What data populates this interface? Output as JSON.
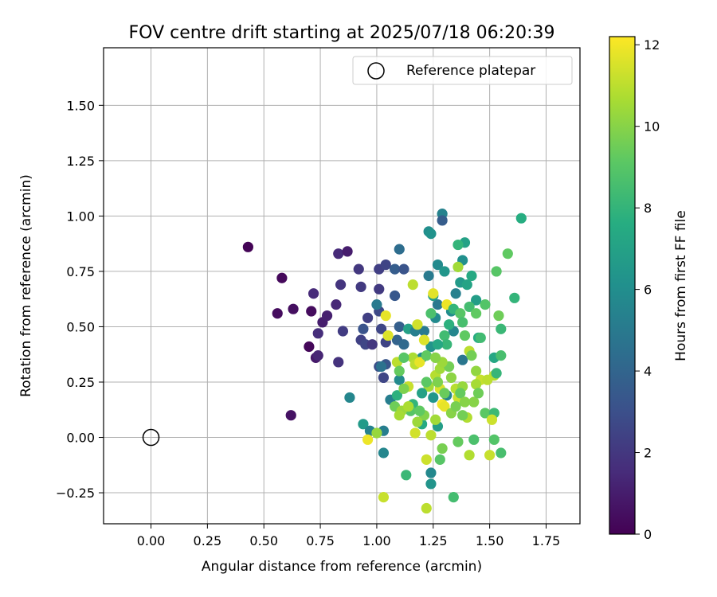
{
  "chart_data": {
    "type": "scatter",
    "title": "FOV centre drift starting at 2025/07/18 06:20:39",
    "xlabel": "Angular distance from reference (arcmin)",
    "ylabel": "Rotation from reference (arcmin)",
    "xlim": [
      -0.21,
      1.9
    ],
    "ylim": [
      -0.39,
      1.76
    ],
    "xticks": [
      "0.00",
      "0.25",
      "0.50",
      "0.75",
      "1.00",
      "1.25",
      "1.50",
      "1.75"
    ],
    "yticks": [
      "−0.25",
      "0.00",
      "0.25",
      "0.50",
      "0.75",
      "1.00",
      "1.25",
      "1.50"
    ],
    "grid": true,
    "legend": {
      "placement": "top-right",
      "entries": [
        "Reference platepar"
      ]
    },
    "reference_point": {
      "x": 0.0,
      "y": 0.0,
      "label": "Reference platepar"
    },
    "colorbar": {
      "label": "Hours from first FF file",
      "min": 0,
      "max": 12.2,
      "ticks": [
        "0",
        "2",
        "4",
        "6",
        "8",
        "10",
        "12"
      ],
      "colormap": "viridis"
    },
    "points": [
      {
        "x": 0.43,
        "y": 0.86,
        "c": 0.1
      },
      {
        "x": 0.58,
        "y": 0.72,
        "c": 0.3
      },
      {
        "x": 0.56,
        "y": 0.56,
        "c": 0.4
      },
      {
        "x": 0.63,
        "y": 0.58,
        "c": 0.5
      },
      {
        "x": 0.71,
        "y": 0.57,
        "c": 0.4
      },
      {
        "x": 0.7,
        "y": 0.41,
        "c": 0.2
      },
      {
        "x": 0.62,
        "y": 0.1,
        "c": 0.6
      },
      {
        "x": 0.73,
        "y": 0.36,
        "c": 0.9
      },
      {
        "x": 0.74,
        "y": 0.37,
        "c": 1.3
      },
      {
        "x": 0.76,
        "y": 0.52,
        "c": 1.0
      },
      {
        "x": 0.78,
        "y": 0.55,
        "c": 1.1
      },
      {
        "x": 0.72,
        "y": 0.65,
        "c": 1.5
      },
      {
        "x": 0.74,
        "y": 0.47,
        "c": 1.6
      },
      {
        "x": 0.82,
        "y": 0.6,
        "c": 1.4
      },
      {
        "x": 0.83,
        "y": 0.83,
        "c": 1.5
      },
      {
        "x": 0.87,
        "y": 0.84,
        "c": 1.0
      },
      {
        "x": 0.84,
        "y": 0.69,
        "c": 1.9
      },
      {
        "x": 0.85,
        "y": 0.48,
        "c": 2.2
      },
      {
        "x": 0.83,
        "y": 0.34,
        "c": 1.8
      },
      {
        "x": 0.92,
        "y": 0.76,
        "c": 2.0
      },
      {
        "x": 0.93,
        "y": 0.68,
        "c": 2.1
      },
      {
        "x": 0.96,
        "y": 0.54,
        "c": 2.3
      },
      {
        "x": 0.94,
        "y": 0.49,
        "c": 3.2
      },
      {
        "x": 0.93,
        "y": 0.44,
        "c": 2.4
      },
      {
        "x": 0.95,
        "y": 0.42,
        "c": 2.6
      },
      {
        "x": 0.98,
        "y": 0.42,
        "c": 2.0
      },
      {
        "x": 1.01,
        "y": 0.76,
        "c": 2.3
      },
      {
        "x": 1.04,
        "y": 0.78,
        "c": 2.5
      },
      {
        "x": 1.01,
        "y": 0.67,
        "c": 2.1
      },
      {
        "x": 1.01,
        "y": 0.57,
        "c": 2.7
      },
      {
        "x": 1.02,
        "y": 0.49,
        "c": 2.6
      },
      {
        "x": 1.04,
        "y": 0.43,
        "c": 2.5
      },
      {
        "x": 1.01,
        "y": 0.32,
        "c": 3.0
      },
      {
        "x": 1.03,
        "y": 0.27,
        "c": 2.6
      },
      {
        "x": 1.04,
        "y": 0.33,
        "c": 3.3
      },
      {
        "x": 1.08,
        "y": 0.64,
        "c": 3.4
      },
      {
        "x": 1.08,
        "y": 0.76,
        "c": 3.6
      },
      {
        "x": 1.1,
        "y": 0.85,
        "c": 4.4
      },
      {
        "x": 1.12,
        "y": 0.76,
        "c": 3.2
      },
      {
        "x": 1.1,
        "y": 0.5,
        "c": 3.7
      },
      {
        "x": 1.09,
        "y": 0.44,
        "c": 3.9
      },
      {
        "x": 1.12,
        "y": 0.42,
        "c": 4.2
      },
      {
        "x": 1.0,
        "y": 0.6,
        "c": 5.0
      },
      {
        "x": 1.02,
        "y": 0.32,
        "c": 4.6
      },
      {
        "x": 1.06,
        "y": 0.17,
        "c": 5.2
      },
      {
        "x": 1.03,
        "y": 0.03,
        "c": 5.2
      },
      {
        "x": 0.88,
        "y": 0.18,
        "c": 5.6
      },
      {
        "x": 0.94,
        "y": 0.06,
        "c": 6.6
      },
      {
        "x": 0.97,
        "y": 0.03,
        "c": 5.4
      },
      {
        "x": 1.03,
        "y": -0.07,
        "c": 5.6
      },
      {
        "x": 1.1,
        "y": 0.26,
        "c": 5.8
      },
      {
        "x": 1.14,
        "y": 0.49,
        "c": 7.0
      },
      {
        "x": 1.17,
        "y": 0.48,
        "c": 5.2
      },
      {
        "x": 1.21,
        "y": 0.48,
        "c": 5.0
      },
      {
        "x": 1.2,
        "y": 0.36,
        "c": 6.0
      },
      {
        "x": 1.24,
        "y": 0.41,
        "c": 6.3
      },
      {
        "x": 1.26,
        "y": 0.54,
        "c": 5.8
      },
      {
        "x": 1.27,
        "y": 0.6,
        "c": 4.9
      },
      {
        "x": 1.25,
        "y": 0.64,
        "c": 6.7
      },
      {
        "x": 1.23,
        "y": 0.73,
        "c": 5.0
      },
      {
        "x": 1.27,
        "y": 0.78,
        "c": 5.8
      },
      {
        "x": 1.23,
        "y": 0.93,
        "c": 6.0
      },
      {
        "x": 1.24,
        "y": 0.92,
        "c": 6.2
      },
      {
        "x": 1.29,
        "y": 1.01,
        "c": 5.4
      },
      {
        "x": 1.29,
        "y": 0.98,
        "c": 3.6
      },
      {
        "x": 1.3,
        "y": 0.75,
        "c": 6.4
      },
      {
        "x": 1.33,
        "y": 0.57,
        "c": 5.9
      },
      {
        "x": 1.34,
        "y": 0.48,
        "c": 5.6
      },
      {
        "x": 1.38,
        "y": 0.35,
        "c": 4.8
      },
      {
        "x": 1.35,
        "y": 0.65,
        "c": 5.3
      },
      {
        "x": 1.37,
        "y": 0.7,
        "c": 6.6
      },
      {
        "x": 1.38,
        "y": 0.8,
        "c": 6.1
      },
      {
        "x": 1.39,
        "y": 0.88,
        "c": 7.0
      },
      {
        "x": 1.36,
        "y": 0.87,
        "c": 8.0
      },
      {
        "x": 1.4,
        "y": 0.69,
        "c": 7.1
      },
      {
        "x": 1.42,
        "y": 0.73,
        "c": 7.4
      },
      {
        "x": 1.44,
        "y": 0.62,
        "c": 6.8
      },
      {
        "x": 1.45,
        "y": 0.45,
        "c": 7.5
      },
      {
        "x": 1.31,
        "y": 0.19,
        "c": 5.6
      },
      {
        "x": 1.27,
        "y": 0.05,
        "c": 6.8
      },
      {
        "x": 1.24,
        "y": -0.16,
        "c": 5.7
      },
      {
        "x": 1.24,
        "y": -0.21,
        "c": 6.3
      },
      {
        "x": 1.34,
        "y": -0.27,
        "c": 8.5
      },
      {
        "x": 1.2,
        "y": 0.06,
        "c": 7.4
      },
      {
        "x": 1.16,
        "y": 0.15,
        "c": 8.0
      },
      {
        "x": 1.15,
        "y": 0.12,
        "c": 9.0
      },
      {
        "x": 1.13,
        "y": -0.17,
        "c": 8.2
      },
      {
        "x": 1.09,
        "y": 0.19,
        "c": 7.8
      },
      {
        "x": 1.08,
        "y": 0.14,
        "c": 9.5
      },
      {
        "x": 1.11,
        "y": 0.12,
        "c": 10.4
      },
      {
        "x": 1.1,
        "y": 0.1,
        "c": 10.6
      },
      {
        "x": 1.14,
        "y": 0.23,
        "c": 11.2
      },
      {
        "x": 1.16,
        "y": 0.36,
        "c": 10.7
      },
      {
        "x": 1.17,
        "y": 0.33,
        "c": 11.0
      },
      {
        "x": 1.18,
        "y": 0.51,
        "c": 11.4
      },
      {
        "x": 1.21,
        "y": 0.44,
        "c": 11.6
      },
      {
        "x": 1.19,
        "y": 0.34,
        "c": 11.8
      },
      {
        "x": 1.16,
        "y": 0.69,
        "c": 11.0
      },
      {
        "x": 1.23,
        "y": 0.23,
        "c": 10.5
      },
      {
        "x": 1.26,
        "y": 0.28,
        "c": 10.9
      },
      {
        "x": 1.28,
        "y": 0.22,
        "c": 11.5
      },
      {
        "x": 1.29,
        "y": 0.15,
        "c": 12.0
      },
      {
        "x": 1.3,
        "y": 0.14,
        "c": 11.8
      },
      {
        "x": 1.31,
        "y": 0.6,
        "c": 11.9
      },
      {
        "x": 1.28,
        "y": 0.31,
        "c": 10.5
      },
      {
        "x": 1.25,
        "y": 0.65,
        "c": 11.7
      },
      {
        "x": 1.27,
        "y": 0.25,
        "c": 9.8
      },
      {
        "x": 1.3,
        "y": 0.2,
        "c": 9.4
      },
      {
        "x": 1.33,
        "y": 0.27,
        "c": 10.1
      },
      {
        "x": 1.35,
        "y": 0.22,
        "c": 10.9
      },
      {
        "x": 1.36,
        "y": 0.18,
        "c": 11.3
      },
      {
        "x": 1.38,
        "y": 0.23,
        "c": 10.3
      },
      {
        "x": 1.37,
        "y": 0.2,
        "c": 9.3
      },
      {
        "x": 1.39,
        "y": 0.16,
        "c": 10.0
      },
      {
        "x": 1.41,
        "y": 0.39,
        "c": 11.0
      },
      {
        "x": 1.39,
        "y": 0.46,
        "c": 9.2
      },
      {
        "x": 1.42,
        "y": 0.37,
        "c": 9.6
      },
      {
        "x": 1.44,
        "y": 0.3,
        "c": 10.2
      },
      {
        "x": 1.46,
        "y": 0.26,
        "c": 11.2
      },
      {
        "x": 1.44,
        "y": 0.24,
        "c": 10.6
      },
      {
        "x": 1.43,
        "y": 0.16,
        "c": 10.0
      },
      {
        "x": 1.45,
        "y": 0.2,
        "c": 9.5
      },
      {
        "x": 1.48,
        "y": 0.11,
        "c": 9.1
      },
      {
        "x": 1.4,
        "y": 0.09,
        "c": 10.8
      },
      {
        "x": 1.38,
        "y": 0.1,
        "c": 9.6
      },
      {
        "x": 1.41,
        "y": -0.08,
        "c": 10.8
      },
      {
        "x": 1.43,
        "y": -0.01,
        "c": 8.7
      },
      {
        "x": 1.36,
        "y": -0.02,
        "c": 9.3
      },
      {
        "x": 1.28,
        "y": -0.1,
        "c": 9.0
      },
      {
        "x": 1.29,
        "y": -0.05,
        "c": 9.7
      },
      {
        "x": 1.22,
        "y": -0.1,
        "c": 11.3
      },
      {
        "x": 1.22,
        "y": -0.32,
        "c": 11.0
      },
      {
        "x": 1.24,
        "y": 0.01,
        "c": 11.0
      },
      {
        "x": 1.21,
        "y": 0.1,
        "c": 9.9
      },
      {
        "x": 1.18,
        "y": 0.07,
        "c": 10.4
      },
      {
        "x": 1.17,
        "y": 0.02,
        "c": 11.4
      },
      {
        "x": 1.03,
        "y": -0.27,
        "c": 11.2
      },
      {
        "x": 0.96,
        "y": -0.01,
        "c": 11.9
      },
      {
        "x": 1.0,
        "y": 0.02,
        "c": 10.3
      },
      {
        "x": 1.04,
        "y": 0.55,
        "c": 11.8
      },
      {
        "x": 1.05,
        "y": 0.46,
        "c": 11.6
      },
      {
        "x": 1.09,
        "y": 0.34,
        "c": 11.0
      },
      {
        "x": 1.1,
        "y": 0.3,
        "c": 9.3
      },
      {
        "x": 1.12,
        "y": 0.36,
        "c": 9.0
      },
      {
        "x": 1.22,
        "y": 0.37,
        "c": 9.2
      },
      {
        "x": 1.24,
        "y": 0.56,
        "c": 8.7
      },
      {
        "x": 1.3,
        "y": 0.46,
        "c": 8.4
      },
      {
        "x": 1.32,
        "y": 0.51,
        "c": 7.8
      },
      {
        "x": 1.31,
        "y": 0.42,
        "c": 8.1
      },
      {
        "x": 1.34,
        "y": 0.58,
        "c": 8.0
      },
      {
        "x": 1.36,
        "y": 0.77,
        "c": 10.5
      },
      {
        "x": 1.37,
        "y": 0.56,
        "c": 9.0
      },
      {
        "x": 1.38,
        "y": 0.52,
        "c": 8.6
      },
      {
        "x": 1.41,
        "y": 0.59,
        "c": 8.5
      },
      {
        "x": 1.44,
        "y": 0.56,
        "c": 9.2
      },
      {
        "x": 1.48,
        "y": 0.6,
        "c": 8.9
      },
      {
        "x": 1.53,
        "y": 0.75,
        "c": 9.0
      },
      {
        "x": 1.54,
        "y": 0.55,
        "c": 9.5
      },
      {
        "x": 1.55,
        "y": 0.49,
        "c": 8.2
      },
      {
        "x": 1.52,
        "y": 0.36,
        "c": 7.3
      },
      {
        "x": 1.55,
        "y": 0.37,
        "c": 8.6
      },
      {
        "x": 1.52,
        "y": 0.28,
        "c": 10.9
      },
      {
        "x": 1.53,
        "y": 0.29,
        "c": 8.1
      },
      {
        "x": 1.52,
        "y": 0.11,
        "c": 8.3
      },
      {
        "x": 1.51,
        "y": 0.08,
        "c": 11.3
      },
      {
        "x": 1.52,
        "y": -0.01,
        "c": 8.9
      },
      {
        "x": 1.55,
        "y": -0.07,
        "c": 8.6
      },
      {
        "x": 1.5,
        "y": -0.08,
        "c": 11.2
      },
      {
        "x": 1.58,
        "y": 0.83,
        "c": 9.2
      },
      {
        "x": 1.61,
        "y": 0.63,
        "c": 8.0
      },
      {
        "x": 1.64,
        "y": 0.99,
        "c": 7.6
      },
      {
        "x": 1.49,
        "y": 0.26,
        "c": 11.0
      },
      {
        "x": 1.46,
        "y": 0.45,
        "c": 8.4
      },
      {
        "x": 1.33,
        "y": 0.11,
        "c": 10.0
      },
      {
        "x": 1.35,
        "y": 0.14,
        "c": 9.7
      },
      {
        "x": 1.32,
        "y": 0.32,
        "c": 9.6
      },
      {
        "x": 1.29,
        "y": 0.34,
        "c": 10.4
      },
      {
        "x": 1.26,
        "y": 0.36,
        "c": 10.0
      },
      {
        "x": 1.27,
        "y": 0.42,
        "c": 7.3
      },
      {
        "x": 1.25,
        "y": 0.18,
        "c": 6.4
      },
      {
        "x": 1.12,
        "y": 0.22,
        "c": 9.8
      },
      {
        "x": 1.2,
        "y": 0.2,
        "c": 7.0
      },
      {
        "x": 1.22,
        "y": 0.25,
        "c": 9.1
      },
      {
        "x": 1.14,
        "y": 0.14,
        "c": 10.7
      },
      {
        "x": 1.19,
        "y": 0.12,
        "c": 9.2
      },
      {
        "x": 1.26,
        "y": 0.08,
        "c": 10.5
      }
    ]
  }
}
